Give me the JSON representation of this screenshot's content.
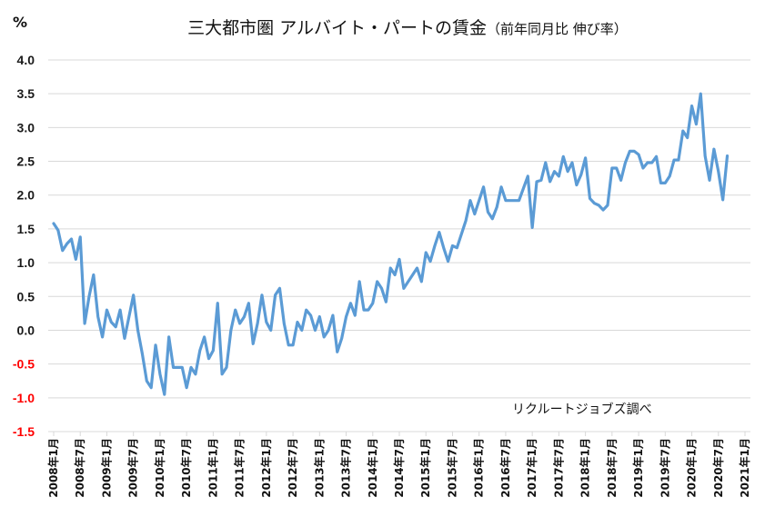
{
  "chart_data": {
    "type": "line",
    "title": "三大都市圏 アルバイト・パートの賃金",
    "subtitle": "（前年同月比 伸び率）",
    "unit_label": "%",
    "annotation": "リクルートジョブズ調べ",
    "ylim": [
      -1.5,
      4.0
    ],
    "yticks": [
      "4.0",
      "3.5",
      "3.0",
      "2.5",
      "2.0",
      "1.5",
      "1.0",
      "0.5",
      "0.0",
      "-0.5",
      "-1.0",
      "-1.5"
    ],
    "negative_tick_color": "#ff0000",
    "positive_tick_color": "#1a1a1a",
    "line_color": "#5b9bd5",
    "grid": true,
    "x_start": "2008年1月",
    "x_end": "2021年1月",
    "xtick_labels": [
      "2008年1月",
      "2008年7月",
      "2009年1月",
      "2009年7月",
      "2010年1月",
      "2010年7月",
      "2011年1月",
      "2011年7月",
      "2012年1月",
      "2012年7月",
      "2013年1月",
      "2013年7月",
      "2014年1月",
      "2014年7月",
      "2015年1月",
      "2015年7月",
      "2016年1月",
      "2016年7月",
      "2017年1月",
      "2017年7月",
      "2018年1月",
      "2018年7月",
      "2019年1月",
      "2019年7月",
      "2020年1月",
      "2020年7月",
      "2021年1月"
    ],
    "series": [
      {
        "values": [
          1.58,
          1.48,
          1.18,
          1.28,
          1.35,
          1.05,
          1.38,
          0.1,
          0.5,
          0.82,
          0.2,
          -0.1,
          0.3,
          0.12,
          0.05,
          0.3,
          -0.12,
          0.2,
          0.52,
          0.0,
          -0.35,
          -0.75,
          -0.85,
          -0.22,
          -0.65,
          -0.95,
          -0.1,
          -0.55,
          -0.55,
          -0.55,
          -0.85,
          -0.55,
          -0.65,
          -0.3,
          -0.1,
          -0.42,
          -0.3,
          0.4,
          -0.65,
          -0.55,
          0.0,
          0.3,
          0.1,
          0.2,
          0.4,
          -0.2,
          0.1,
          0.52,
          0.12,
          0.0,
          0.52,
          0.62,
          0.1,
          -0.22,
          -0.22,
          0.12,
          0.0,
          0.3,
          0.22,
          0.0,
          0.2,
          -0.1,
          0.0,
          0.22,
          -0.32,
          -0.12,
          0.2,
          0.4,
          0.22,
          0.72,
          0.3,
          0.3,
          0.4,
          0.72,
          0.62,
          0.42,
          0.92,
          0.82,
          1.05,
          0.62,
          0.72,
          0.82,
          0.92,
          0.72,
          1.15,
          1.02,
          1.25,
          1.45,
          1.22,
          1.02,
          1.25,
          1.22,
          1.42,
          1.62,
          1.92,
          1.72,
          1.92,
          2.12,
          1.75,
          1.65,
          1.82,
          2.12,
          1.92,
          1.92,
          1.92,
          1.92,
          2.1,
          2.28,
          1.52,
          2.2,
          2.22,
          2.48,
          2.2,
          2.35,
          2.28,
          2.57,
          2.35,
          2.48,
          2.15,
          2.3,
          2.55,
          1.95,
          1.88,
          1.85,
          1.78,
          1.85,
          2.4,
          2.4,
          2.22,
          2.48,
          2.65,
          2.65,
          2.6,
          2.4,
          2.48,
          2.48,
          2.57,
          2.18,
          2.18,
          2.28,
          2.52,
          2.52,
          2.95,
          2.85,
          3.32,
          3.05,
          3.5,
          2.58,
          2.22,
          2.68,
          2.35,
          1.93,
          2.58
        ]
      }
    ]
  }
}
